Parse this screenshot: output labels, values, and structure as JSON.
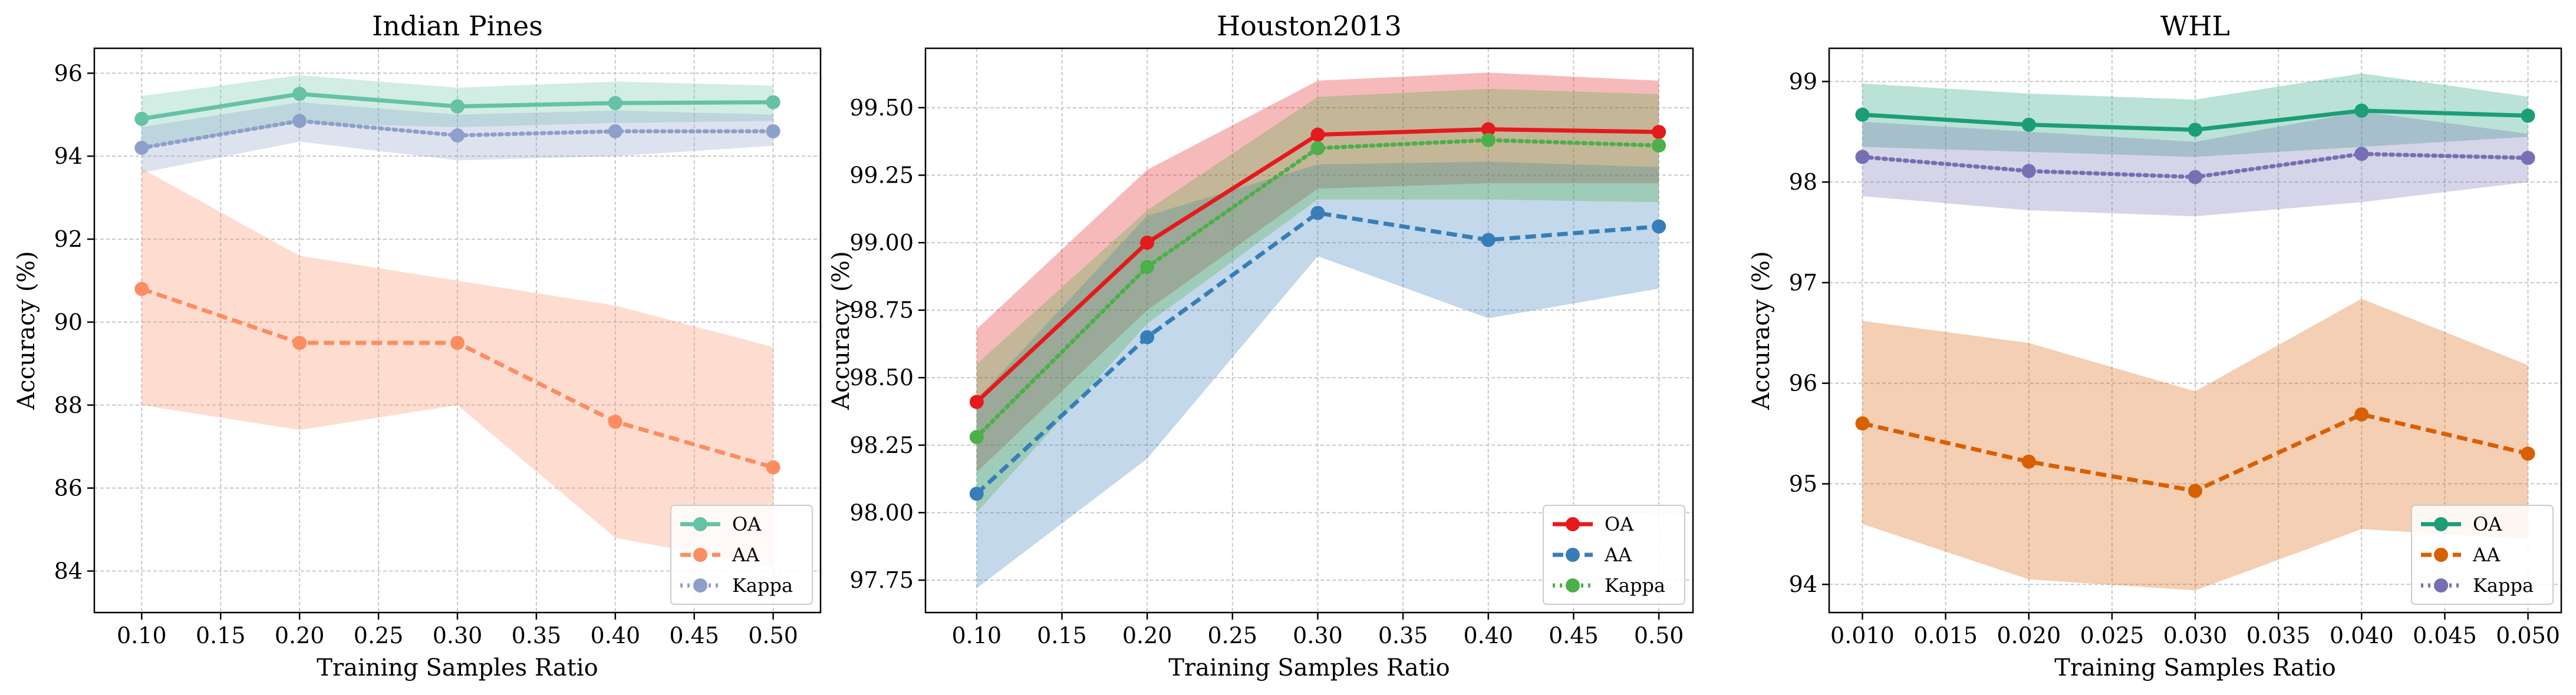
{
  "chart_data": [
    {
      "type": "line",
      "title": "Indian Pines",
      "xlabel": "Training Samples Ratio",
      "ylabel": "Accuracy (%)",
      "x": [
        0.1,
        0.2,
        0.3,
        0.4,
        0.5
      ],
      "xlim": [
        0.07,
        0.53
      ],
      "ylim": [
        83,
        96.6
      ],
      "xticks": [
        0.1,
        0.15,
        0.2,
        0.25,
        0.3,
        0.35,
        0.4,
        0.45,
        0.5
      ],
      "xtick_labels": [
        "0.10",
        "0.15",
        "0.20",
        "0.25",
        "0.30",
        "0.35",
        "0.40",
        "0.45",
        "0.50"
      ],
      "yticks": [
        84,
        86,
        88,
        90,
        92,
        94,
        96
      ],
      "ytick_labels": [
        "84",
        "86",
        "88",
        "90",
        "92",
        "94",
        "96"
      ],
      "grid": true,
      "legend_position": "bottom-right",
      "series": [
        {
          "name": "OA",
          "color": "#66c2a5",
          "style": "solid",
          "values": [
            94.9,
            95.5,
            95.2,
            95.28,
            95.3
          ],
          "lower": [
            94.2,
            94.8,
            94.7,
            94.8,
            94.85
          ],
          "upper": [
            95.45,
            95.95,
            95.65,
            95.8,
            95.7
          ]
        },
        {
          "name": "AA",
          "color": "#fc8d62",
          "style": "dashed",
          "values": [
            90.8,
            89.5,
            89.5,
            87.6,
            86.5
          ],
          "lower": [
            88.0,
            87.4,
            88.0,
            84.8,
            84.1
          ],
          "upper": [
            93.7,
            91.6,
            91.0,
            90.4,
            89.4
          ]
        },
        {
          "name": "Kappa",
          "color": "#8da0cb",
          "style": "dotted",
          "values": [
            94.2,
            94.85,
            94.5,
            94.6,
            94.6
          ],
          "lower": [
            93.6,
            94.35,
            93.9,
            94.0,
            94.25
          ],
          "upper": [
            94.7,
            95.3,
            95.0,
            95.1,
            95.0
          ]
        }
      ]
    },
    {
      "type": "line",
      "title": "Houston2013",
      "xlabel": "Training Samples Ratio",
      "ylabel": "Accuracy (%)",
      "x": [
        0.1,
        0.2,
        0.3,
        0.4,
        0.5
      ],
      "xlim": [
        0.07,
        0.52
      ],
      "ylim": [
        97.63,
        99.72
      ],
      "xticks": [
        0.1,
        0.15,
        0.2,
        0.25,
        0.3,
        0.35,
        0.4,
        0.45,
        0.5
      ],
      "xtick_labels": [
        "0.10",
        "0.15",
        "0.20",
        "0.25",
        "0.30",
        "0.35",
        "0.40",
        "0.45",
        "0.50"
      ],
      "yticks": [
        97.75,
        98.0,
        98.25,
        98.5,
        98.75,
        99.0,
        99.25,
        99.5
      ],
      "ytick_labels": [
        "97.75",
        "98.00",
        "98.25",
        "98.50",
        "98.75",
        "99.00",
        "99.25",
        "99.50"
      ],
      "grid": true,
      "legend_position": "bottom-right",
      "series": [
        {
          "name": "OA",
          "color": "#e41a1c",
          "style": "solid",
          "values": [
            98.41,
            99.0,
            99.4,
            99.42,
            99.41
          ],
          "lower": [
            98.15,
            98.75,
            99.2,
            99.22,
            99.22
          ],
          "upper": [
            98.68,
            99.27,
            99.6,
            99.63,
            99.6
          ]
        },
        {
          "name": "AA",
          "color": "#377eb8",
          "style": "dashed",
          "values": [
            98.07,
            98.65,
            99.11,
            99.01,
            99.06
          ],
          "lower": [
            97.72,
            98.2,
            98.95,
            98.72,
            98.83
          ],
          "upper": [
            98.42,
            99.1,
            99.29,
            99.3,
            99.28
          ]
        },
        {
          "name": "Kappa",
          "color": "#4daf4a",
          "style": "dotted",
          "values": [
            98.28,
            98.91,
            99.35,
            99.38,
            99.36
          ],
          "lower": [
            98.0,
            98.7,
            99.16,
            99.16,
            99.15
          ],
          "upper": [
            98.55,
            99.12,
            99.54,
            99.57,
            99.55
          ]
        }
      ]
    },
    {
      "type": "line",
      "title": "WHL",
      "xlabel": "Training Samples Ratio",
      "ylabel": "Accuracy (%)",
      "x": [
        0.01,
        0.02,
        0.03,
        0.04,
        0.05
      ],
      "xlim": [
        0.008,
        0.052
      ],
      "ylim": [
        93.72,
        99.33
      ],
      "xticks": [
        0.01,
        0.015,
        0.02,
        0.025,
        0.03,
        0.035,
        0.04,
        0.045,
        0.05
      ],
      "xtick_labels": [
        "0.010",
        "0.015",
        "0.020",
        "0.025",
        "0.030",
        "0.035",
        "0.040",
        "0.045",
        "0.050"
      ],
      "yticks": [
        94,
        95,
        96,
        97,
        98,
        99
      ],
      "ytick_labels": [
        "94",
        "95",
        "96",
        "97",
        "98",
        "99"
      ],
      "grid": true,
      "legend_position": "bottom-right",
      "series": [
        {
          "name": "OA",
          "color": "#1b9e77",
          "style": "solid",
          "values": [
            98.67,
            98.57,
            98.52,
            98.71,
            98.66
          ],
          "lower": [
            98.35,
            98.3,
            98.25,
            98.35,
            98.45
          ],
          "upper": [
            98.98,
            98.88,
            98.82,
            99.08,
            98.85
          ]
        },
        {
          "name": "AA",
          "color": "#d95f02",
          "style": "dashed",
          "values": [
            95.6,
            95.22,
            94.93,
            95.69,
            95.3
          ],
          "lower": [
            94.6,
            94.05,
            93.94,
            94.55,
            94.45
          ],
          "upper": [
            96.62,
            96.4,
            95.92,
            96.84,
            96.18
          ]
        },
        {
          "name": "Kappa",
          "color": "#7570b3",
          "style": "dotted",
          "values": [
            98.25,
            98.11,
            98.05,
            98.28,
            98.24
          ],
          "lower": [
            97.86,
            97.72,
            97.66,
            97.8,
            98.0
          ],
          "upper": [
            98.6,
            98.5,
            98.4,
            98.7,
            98.48
          ]
        }
      ]
    }
  ]
}
